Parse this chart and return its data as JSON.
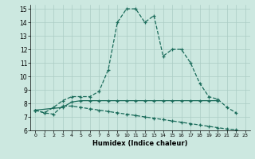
{
  "xlabel": "Humidex (Indice chaleur)",
  "xlim": [
    -0.5,
    23.5
  ],
  "ylim": [
    6,
    15.3
  ],
  "xticks": [
    0,
    1,
    2,
    3,
    4,
    5,
    6,
    7,
    8,
    9,
    10,
    11,
    12,
    13,
    14,
    15,
    16,
    17,
    18,
    19,
    20,
    21,
    22,
    23
  ],
  "yticks": [
    6,
    7,
    8,
    9,
    10,
    11,
    12,
    13,
    14,
    15
  ],
  "background_color": "#cce8e0",
  "grid_color": "#aaccc4",
  "line_color": "#1a6b5a",
  "series": [
    {
      "x": [
        0,
        1,
        2,
        3,
        4,
        5,
        6,
        7,
        8,
        9,
        10,
        11,
        12,
        13,
        14,
        15,
        16,
        17,
        18,
        19,
        20,
        21,
        22
      ],
      "y": [
        7.5,
        7.3,
        7.7,
        8.2,
        8.5,
        8.5,
        8.5,
        8.9,
        10.5,
        14.0,
        15.0,
        15.0,
        14.0,
        14.5,
        11.5,
        12.0,
        12.0,
        11.0,
        9.5,
        8.5,
        8.3,
        7.7,
        7.3
      ],
      "linestyle": "--",
      "marker": "+"
    },
    {
      "x": [
        0,
        3,
        4,
        5,
        6,
        7,
        8,
        9,
        10,
        11,
        12,
        13,
        14,
        15,
        16,
        17,
        18,
        19,
        20
      ],
      "y": [
        7.5,
        7.7,
        8.1,
        8.2,
        8.2,
        8.2,
        8.2,
        8.2,
        8.2,
        8.2,
        8.2,
        8.2,
        8.2,
        8.2,
        8.2,
        8.2,
        8.2,
        8.2,
        8.2
      ],
      "linestyle": "-",
      "marker": "+"
    },
    {
      "x": [
        0,
        1,
        2,
        3,
        4,
        5,
        6,
        7,
        8,
        9,
        10,
        11,
        12,
        13,
        14,
        15,
        16,
        17,
        18,
        19,
        20,
        21,
        22,
        23
      ],
      "y": [
        7.5,
        7.3,
        7.2,
        7.8,
        7.8,
        7.7,
        7.6,
        7.5,
        7.4,
        7.3,
        7.2,
        7.1,
        7.0,
        6.9,
        6.8,
        6.7,
        6.6,
        6.5,
        6.4,
        6.3,
        6.2,
        6.1,
        6.05,
        5.7
      ],
      "linestyle": "--",
      "marker": "+"
    }
  ]
}
